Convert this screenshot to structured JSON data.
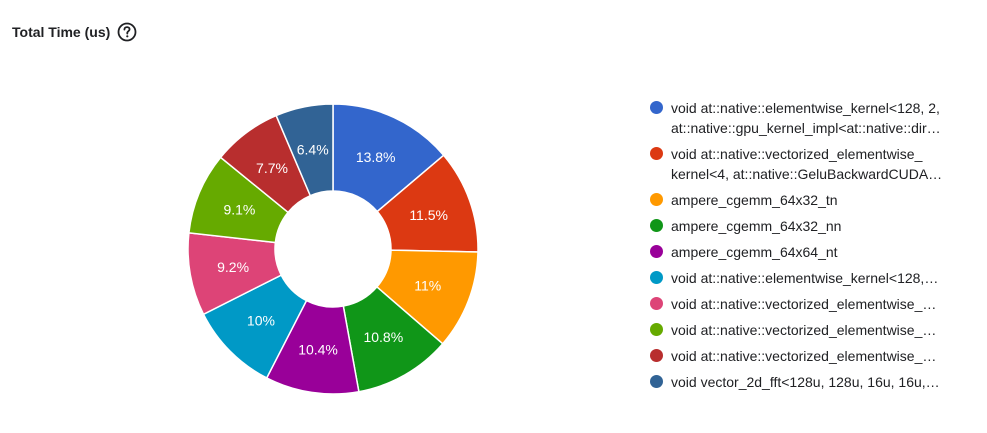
{
  "header": {
    "title": "Total Time (us)",
    "help_icon": "help-circle-icon"
  },
  "chart_data": {
    "type": "pie",
    "style": "donut",
    "title": "Total Time (us)",
    "legend_position": "right",
    "slices": [
      {
        "label_lines": [
          "void at::native::elementwise_kernel<128, 2,",
          "at::native::gpu_kernel_impl<at::native::dir…"
        ],
        "value": 13.8,
        "display": "13.8%",
        "color": "#3366cc"
      },
      {
        "label_lines": [
          "void at::native::vectorized_elementwise_",
          "kernel<4, at::native::GeluBackwardCUDA…"
        ],
        "value": 11.5,
        "display": "11.5%",
        "color": "#dc3912"
      },
      {
        "label_lines": [
          "ampere_cgemm_64x32_tn"
        ],
        "value": 11.0,
        "display": "11%",
        "color": "#ff9900"
      },
      {
        "label_lines": [
          "ampere_cgemm_64x32_nn"
        ],
        "value": 10.8,
        "display": "10.8%",
        "color": "#109618"
      },
      {
        "label_lines": [
          "ampere_cgemm_64x64_nt"
        ],
        "value": 10.4,
        "display": "10.4%",
        "color": "#990099"
      },
      {
        "label_lines": [
          "void at::native::elementwise_kernel<128,…"
        ],
        "value": 10.0,
        "display": "10%",
        "color": "#0099c6"
      },
      {
        "label_lines": [
          "void at::native::vectorized_elementwise_…"
        ],
        "value": 9.2,
        "display": "9.2%",
        "color": "#dd4477"
      },
      {
        "label_lines": [
          "void at::native::vectorized_elementwise_…"
        ],
        "value": 9.1,
        "display": "9.1%",
        "color": "#66aa00"
      },
      {
        "label_lines": [
          "void at::native::vectorized_elementwise_…"
        ],
        "value": 7.7,
        "display": "7.7%",
        "color": "#b82e2e"
      },
      {
        "label_lines": [
          "void vector_2d_fft<128u, 128u, 16u, 16u,…"
        ],
        "value": 6.4,
        "display": "6.4%",
        "color": "#316395"
      }
    ]
  }
}
